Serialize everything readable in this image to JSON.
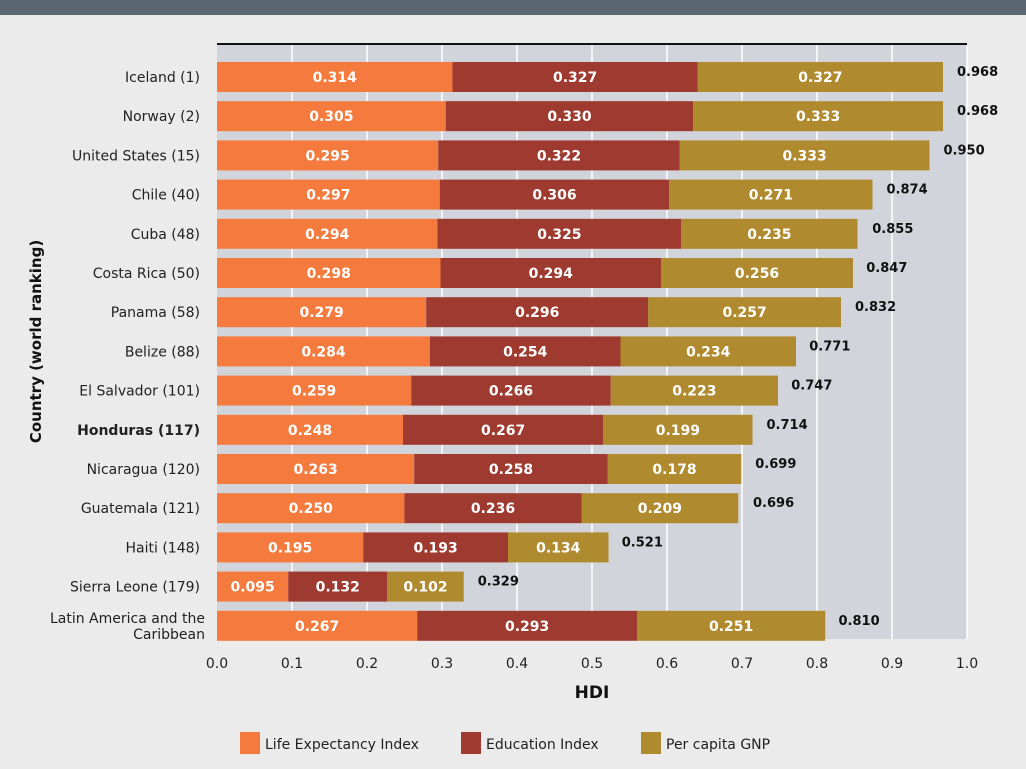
{
  "chart_data": {
    "type": "bar",
    "orientation": "horizontal",
    "stacked": true,
    "title": "",
    "xlabel": "HDI",
    "ylabel": "Country (world ranking)",
    "xlim": [
      0,
      1.0
    ],
    "xticks": [
      "0.0",
      "0.1",
      "0.2",
      "0.3",
      "0.4",
      "0.5",
      "0.6",
      "0.7",
      "0.8",
      "0.9",
      "1.0"
    ],
    "grid": true,
    "legend_position": "bottom",
    "categories": [
      "Iceland (1)",
      "Norway (2)",
      "United States (15)",
      "Chile (40)",
      "Cuba (48)",
      "Costa Rica (50)",
      "Panama (58)",
      "Belize (88)",
      "El Salvador (101)",
      "Honduras (117)",
      "Nicaragua (120)",
      "Guatemala (121)",
      "Haiti (148)",
      "Sierra Leone (179)",
      "Latin America and the Caribbean"
    ],
    "highlighted_category": "Honduras (117)",
    "series": [
      {
        "name": "Life Expectancy Index",
        "color": "#f47a3d",
        "values": [
          0.314,
          0.305,
          0.295,
          0.297,
          0.294,
          0.298,
          0.279,
          0.284,
          0.259,
          0.248,
          0.263,
          0.25,
          0.195,
          0.095,
          0.267
        ],
        "labels": [
          "0.314",
          "0.305",
          "0.295",
          "0.297",
          "0.294",
          "0.298",
          "0.279",
          "0.284",
          "0.259",
          "0.248",
          "0.263",
          "0.250",
          "0.195",
          "0.095",
          "0.267"
        ]
      },
      {
        "name": "Education Index",
        "color": "#9e3a2f",
        "values": [
          0.327,
          0.33,
          0.322,
          0.306,
          0.325,
          0.294,
          0.296,
          0.254,
          0.266,
          0.267,
          0.258,
          0.236,
          0.193,
          0.132,
          0.293
        ],
        "labels": [
          "0.327",
          "0.330",
          "0.322",
          "0.306",
          "0.325",
          "0.294",
          "0.296",
          "0.254",
          "0.266",
          "0.267",
          "0.258",
          "0.236",
          "0.193",
          "0.132",
          "0.293"
        ]
      },
      {
        "name": "Per capita GNP",
        "color": "#b08a2e",
        "values": [
          0.327,
          0.333,
          0.333,
          0.271,
          0.235,
          0.256,
          0.257,
          0.234,
          0.223,
          0.199,
          0.178,
          0.209,
          0.134,
          0.102,
          0.251
        ],
        "labels": [
          "0.327",
          "0.333",
          "0.333",
          "0.271",
          "0.235",
          "0.256",
          "0.257",
          "0.234",
          "0.223",
          "0.199",
          "0.178",
          "0.209",
          "0.134",
          "0.102",
          "0.251"
        ]
      }
    ],
    "totals": [
      0.968,
      0.968,
      0.95,
      0.874,
      0.855,
      0.847,
      0.832,
      0.771,
      0.747,
      0.714,
      0.699,
      0.696,
      0.521,
      0.329,
      0.81
    ],
    "total_labels": [
      "0.968",
      "0.968",
      "0.950",
      "0.874",
      "0.855",
      "0.847",
      "0.832",
      "0.771",
      "0.747",
      "0.714",
      "0.699",
      "0.696",
      "0.521",
      "0.329",
      "0.810"
    ],
    "colors": {
      "plot_background": "#d1d5db",
      "page_background": "#ebebeb",
      "header_bar": "#5a6670",
      "gridline": "#ffffff"
    }
  }
}
